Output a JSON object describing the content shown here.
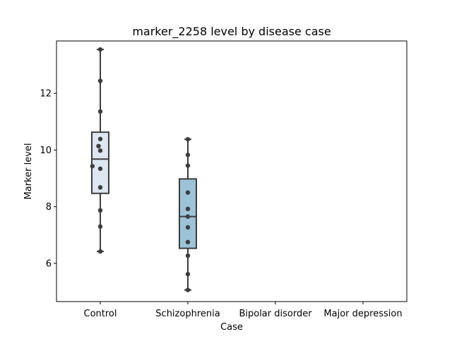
{
  "chart_data": {
    "type": "box",
    "title": "marker_2258 level by disease case",
    "xlabel": "Case",
    "ylabel": "Marker level",
    "categories": [
      "Control",
      "Schizophrenia",
      "Bipolar disorder",
      "Major depression"
    ],
    "ylim": [
      4.65,
      13.85
    ],
    "yticks": [
      6,
      8,
      10,
      12
    ],
    "grid": false,
    "colors": {
      "control_box": "#dce7f2",
      "schizophrenia_box": "#9cc3d8",
      "outline": "#3d3d3d",
      "points": "#3d3d3d"
    },
    "boxes": [
      {
        "category": "Control",
        "whisker_low": 6.42,
        "q1": 8.47,
        "median": 9.68,
        "q3": 10.63,
        "whisker_high": 13.55,
        "points": [
          13.55,
          12.44,
          11.36,
          10.39,
          10.14,
          9.98,
          9.43,
          9.34,
          8.68,
          7.87,
          7.3,
          6.42
        ],
        "offsets": [
          0,
          0,
          0,
          0,
          -0.02,
          0,
          -0.09,
          0,
          0,
          0,
          0,
          0
        ]
      },
      {
        "category": "Schizophrenia",
        "whisker_low": 5.06,
        "q1": 6.53,
        "median": 7.65,
        "q3": 8.98,
        "whisker_high": 10.38,
        "points": [
          10.38,
          9.83,
          9.45,
          8.5,
          7.92,
          7.65,
          7.27,
          6.75,
          6.27,
          5.62,
          5.06
        ],
        "offsets": [
          0,
          0,
          0,
          0,
          0,
          0,
          0,
          0,
          0,
          0,
          0
        ]
      }
    ]
  }
}
